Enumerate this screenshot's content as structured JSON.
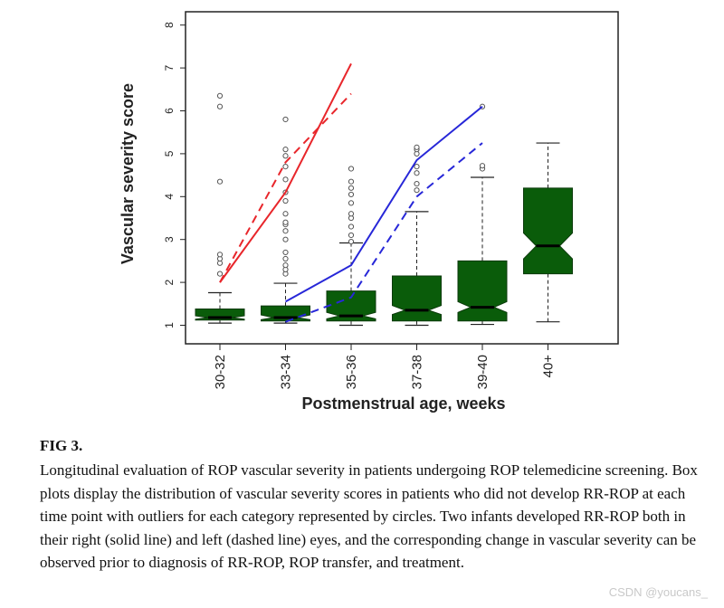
{
  "chart_data": {
    "type": "box",
    "xlabel": "Postmenstrual age, weeks",
    "ylabel": "Vascular severity score",
    "ylim": [
      0.75,
      8.3
    ],
    "yticks": [
      1,
      2,
      3,
      4,
      5,
      6,
      7,
      8
    ],
    "categories": [
      "30-32",
      "33-34",
      "35-36",
      "37-38",
      "39-40",
      "40+"
    ],
    "box_color": "#0a5c0a",
    "boxes": [
      {
        "category": "30-32",
        "whisker_low": 1.05,
        "q1": 1.12,
        "median": 1.18,
        "q3": 1.38,
        "whisker_high": 1.76,
        "notch_low": 1.14,
        "notch_high": 1.22,
        "outliers": [
          2.2,
          2.45,
          2.55,
          2.65,
          4.35,
          6.1,
          6.35
        ]
      },
      {
        "category": "33-34",
        "whisker_low": 1.05,
        "q1": 1.1,
        "median": 1.18,
        "q3": 1.45,
        "whisker_high": 1.98,
        "notch_low": 1.13,
        "notch_high": 1.24,
        "outliers": [
          2.2,
          2.3,
          2.4,
          2.55,
          2.7,
          3.0,
          3.2,
          3.35,
          3.4,
          3.6,
          3.9,
          4.1,
          4.4,
          4.7,
          4.95,
          5.1,
          5.8
        ]
      },
      {
        "category": "35-36",
        "whisker_low": 1.0,
        "q1": 1.1,
        "median": 1.22,
        "q3": 1.8,
        "whisker_high": 2.92,
        "notch_low": 1.15,
        "notch_high": 1.3,
        "outliers": [
          2.95,
          3.1,
          3.3,
          3.5,
          3.6,
          3.85,
          4.05,
          4.2,
          4.35,
          4.65
        ]
      },
      {
        "category": "37-38",
        "whisker_low": 1.0,
        "q1": 1.1,
        "median": 1.35,
        "q3": 2.15,
        "whisker_high": 3.65,
        "notch_low": 1.25,
        "notch_high": 1.46,
        "outliers": [
          4.15,
          4.3,
          4.55,
          4.7,
          5.0,
          5.1,
          5.15
        ]
      },
      {
        "category": "39-40",
        "whisker_low": 1.02,
        "q1": 1.1,
        "median": 1.42,
        "q3": 2.5,
        "whisker_high": 4.45,
        "notch_low": 1.3,
        "notch_high": 1.55,
        "outliers": [
          4.65,
          4.72,
          6.1
        ]
      },
      {
        "category": "40+",
        "whisker_low": 1.08,
        "q1": 2.2,
        "median": 2.85,
        "q3": 4.2,
        "whisker_high": 5.25,
        "notch_low": 2.55,
        "notch_high": 3.15,
        "outliers": []
      }
    ],
    "lines": [
      {
        "color": "#e8262b",
        "style": "solid",
        "x": [
          "30-32",
          "33-34",
          "35-36"
        ],
        "y": [
          2.0,
          4.1,
          7.1
        ]
      },
      {
        "color": "#e8262b",
        "style": "dashed",
        "x": [
          "30-32",
          "33-34",
          "35-36"
        ],
        "y": [
          2.0,
          4.8,
          6.4
        ]
      },
      {
        "color": "#2727d8",
        "style": "solid",
        "x": [
          "33-34",
          "35-36",
          "37-38",
          "39-40"
        ],
        "y": [
          1.55,
          2.4,
          4.85,
          6.1
        ]
      },
      {
        "color": "#2727d8",
        "style": "dashed",
        "x": [
          "33-34",
          "35-36",
          "37-38",
          "39-40"
        ],
        "y": [
          1.08,
          1.65,
          4.0,
          5.25
        ]
      }
    ]
  },
  "caption": {
    "label": "FIG 3.",
    "text": "Longitudinal evaluation of ROP vascular severity in patients undergoing ROP telemedicine screening. Box plots display the distribution of vascular severity scores in patients who did not develop RR-ROP at each time point with outliers for each category represented by circles. Two infants developed RR-ROP both in their right (solid line) and left (dashed line) eyes, and the corresponding change in vascular severity can be observed prior to diagnosis of RR-ROP, ROP transfer, and treatment."
  },
  "watermark": "CSDN @youcans_"
}
